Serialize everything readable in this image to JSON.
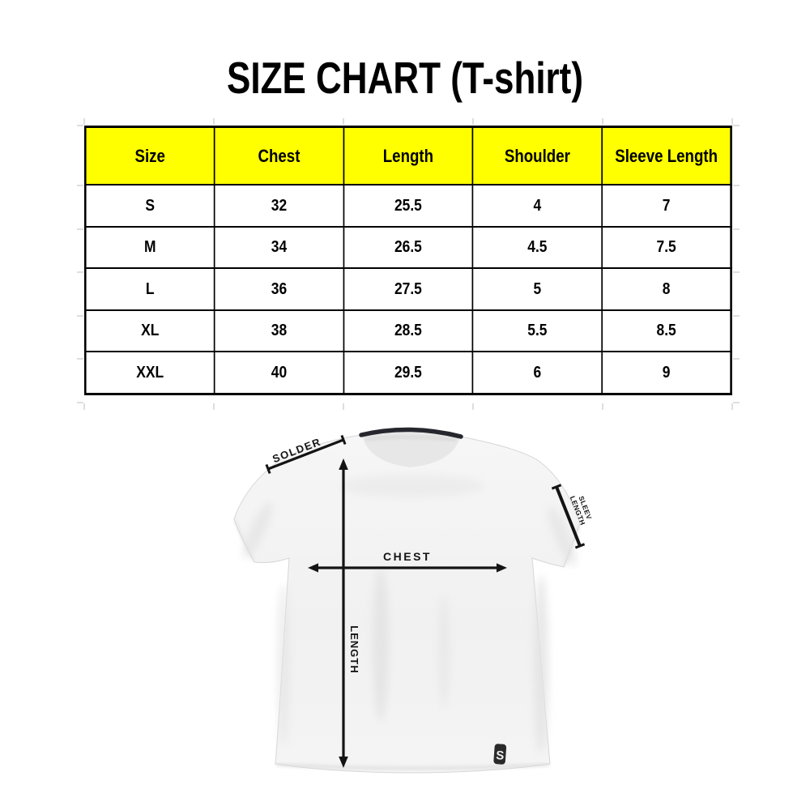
{
  "title": "SIZE CHART (T-shirt)",
  "table": {
    "headers": [
      "Size",
      "Chest",
      "Length",
      "Shoulder",
      "Sleeve Length"
    ],
    "rows": [
      [
        "S",
        "32",
        "25.5",
        "4",
        "7"
      ],
      [
        "M",
        "34",
        "26.5",
        "4.5",
        "7.5"
      ],
      [
        "L",
        "36",
        "27.5",
        "5",
        "8"
      ],
      [
        "XL",
        "38",
        "28.5",
        "5.5",
        "8.5"
      ],
      [
        "XXL",
        "40",
        "29.5",
        "6",
        "9"
      ]
    ]
  },
  "colors": {
    "header_bg": "#ffff00",
    "table_border": "#000000",
    "arrow": "#141414",
    "shirt_fill": "#f2f2f2",
    "collar": "#26262e"
  },
  "diagram": {
    "shoulder_label": "SOLDER",
    "chest_label": "CHEST",
    "length_label": "LENGTH",
    "sleeve_label_line1": "SLEEV",
    "sleeve_label_line2": "LENGTH",
    "logo_letter": "S"
  }
}
